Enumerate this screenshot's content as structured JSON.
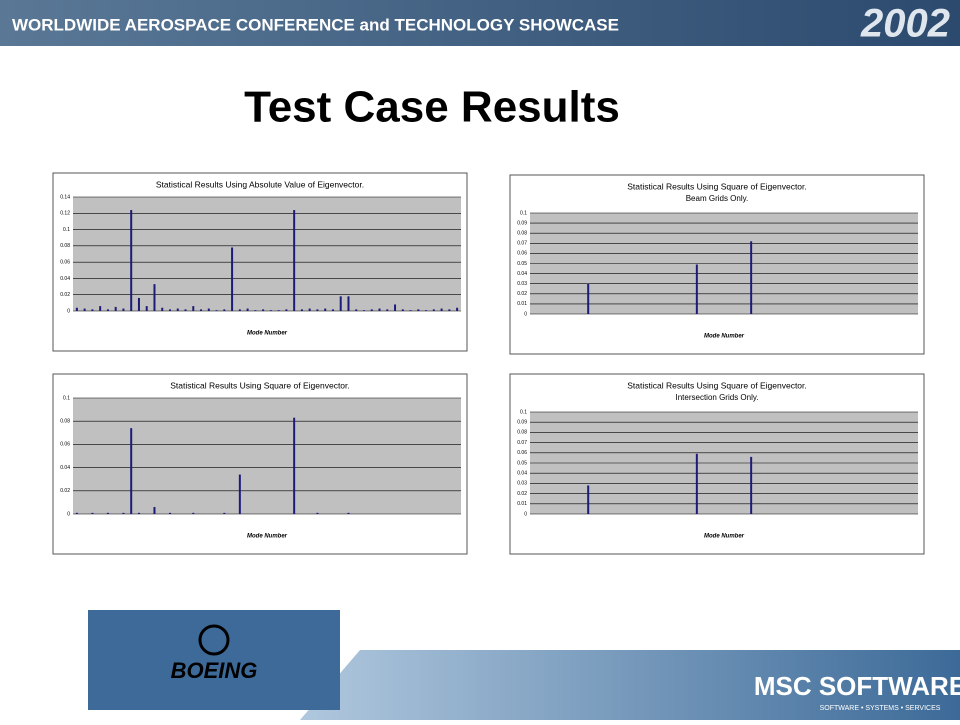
{
  "header": {
    "conference": "WORLDWIDE AEROSPACE CONFERENCE and TECHNOLOGY SHOWCASE",
    "year": "2002"
  },
  "title": "Test Case Results",
  "logos": {
    "left": "BOEING",
    "right": "MSC SOFTWARE",
    "tagline": "SOFTWARE • SYSTEMS • SERVICES"
  },
  "chart_data": [
    {
      "type": "bar",
      "title": "Statistical Results Using Absolute Value of Eigenvector.",
      "x_label": "Mode Number",
      "color": "#1c1c78",
      "grid": true,
      "ylim": [
        0,
        0.14
      ],
      "yticks": [
        0,
        0.02,
        0.04,
        0.06,
        0.08,
        0.1,
        0.12,
        0.14
      ],
      "values": [
        0.004,
        0.003,
        0.002,
        0.006,
        0.002,
        0.005,
        0.003,
        0.124,
        0.016,
        0.006,
        0.033,
        0.004,
        0.002,
        0.003,
        0.002,
        0.006,
        0.002,
        0.003,
        0.001,
        0.002,
        0.078,
        0.002,
        0.003,
        0.001,
        0.002,
        0.001,
        0.001,
        0.002,
        0.124,
        0.002,
        0.003,
        0.002,
        0.003,
        0.002,
        0.018,
        0.018,
        0.002,
        0.001,
        0.002,
        0.003,
        0.002,
        0.008,
        0.002,
        0.001,
        0.002,
        0.001,
        0.002,
        0.003,
        0.002,
        0.004
      ]
    },
    {
      "type": "bar",
      "title": "Statistical Results Using Square of Eigenvector.",
      "subtitle": "Beam Grids Only.",
      "x_label": "Mode Number",
      "color": "#1c1c78",
      "grid": true,
      "ylim": [
        0,
        0.1
      ],
      "yticks": [
        0,
        0.01,
        0.02,
        0.03,
        0.04,
        0.05,
        0.06,
        0.07,
        0.08,
        0.09,
        0.1
      ],
      "values": [
        0,
        0,
        0,
        0,
        0,
        0,
        0,
        0.03,
        0,
        0,
        0,
        0,
        0,
        0,
        0,
        0,
        0,
        0,
        0,
        0,
        0,
        0.049,
        0,
        0,
        0,
        0,
        0,
        0,
        0.072,
        0,
        0,
        0,
        0,
        0,
        0,
        0,
        0,
        0,
        0,
        0,
        0,
        0,
        0,
        0,
        0,
        0,
        0,
        0,
        0,
        0
      ]
    },
    {
      "type": "bar",
      "title": "Statistical Results Using Square of Eigenvector.",
      "x_label": "Mode Number",
      "color": "#1c1c78",
      "grid": true,
      "ylim": [
        0,
        0.1
      ],
      "yticks": [
        0,
        0.02,
        0.04,
        0.06,
        0.08,
        0.1
      ],
      "values": [
        0.001,
        0,
        0.001,
        0,
        0.001,
        0,
        0.001,
        0.074,
        0.001,
        0,
        0.006,
        0,
        0.001,
        0,
        0,
        0.001,
        0,
        0,
        0,
        0.001,
        0,
        0.034,
        0,
        0,
        0,
        0,
        0,
        0,
        0.083,
        0,
        0,
        0.001,
        0,
        0,
        0,
        0.001,
        0,
        0,
        0,
        0,
        0,
        0,
        0,
        0,
        0,
        0,
        0,
        0,
        0,
        0
      ]
    },
    {
      "type": "bar",
      "title": "Statistical Results Using Square of Eigenvector.",
      "subtitle": "Intersection Grids Only.",
      "x_label": "Mode Number",
      "color": "#1c1c78",
      "grid": true,
      "ylim": [
        0,
        0.1
      ],
      "yticks": [
        0,
        0.01,
        0.02,
        0.03,
        0.04,
        0.05,
        0.06,
        0.07,
        0.08,
        0.09,
        0.1
      ],
      "values": [
        0,
        0,
        0,
        0,
        0,
        0,
        0,
        0.028,
        0,
        0,
        0,
        0,
        0,
        0,
        0,
        0,
        0,
        0,
        0,
        0,
        0,
        0.059,
        0,
        0,
        0,
        0,
        0,
        0,
        0.056,
        0,
        0,
        0,
        0,
        0,
        0,
        0,
        0,
        0,
        0,
        0,
        0,
        0,
        0,
        0,
        0,
        0,
        0,
        0,
        0,
        0
      ]
    }
  ]
}
